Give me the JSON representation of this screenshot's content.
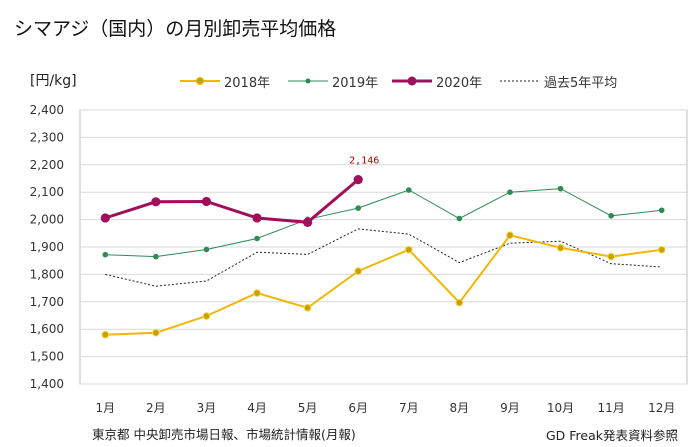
{
  "title": "シマアジ（国内）の月別卸売平均価格",
  "unit_label": "[円/kg]",
  "source": "東京都 中央卸売市場日報、市場統計情報(月報)",
  "credit": "GD Freak発表資料参照",
  "chart_data": {
    "type": "line",
    "categories": [
      "1月",
      "2月",
      "3月",
      "4月",
      "5月",
      "6月",
      "7月",
      "8月",
      "9月",
      "10月",
      "11月",
      "12月"
    ],
    "ylim": [
      1400,
      2400
    ],
    "y_ticks": [
      "1,400",
      "1,500",
      "1,600",
      "1,700",
      "1,800",
      "1,900",
      "2,000",
      "2,100",
      "2,200",
      "2,300",
      "2,400"
    ],
    "grid": true,
    "legend_position": "top",
    "series": [
      {
        "name": "2018年",
        "color": "#f2b705",
        "style": "solid-marker",
        "values": [
          1580,
          1587,
          1648,
          1732,
          1678,
          1812,
          1890,
          1697,
          1943,
          1897,
          1865,
          1890
        ]
      },
      {
        "name": "2019年",
        "color": "#2e8b57",
        "style": "solid-marker-small",
        "values": [
          1872,
          1865,
          1891,
          1931,
          2001,
          2042,
          2108,
          2004,
          2100,
          2113,
          2014,
          2034
        ]
      },
      {
        "name": "2020年",
        "color": "#a0105a",
        "style": "bold-marker",
        "values": [
          2006,
          2065,
          2066,
          2006,
          1990,
          2146,
          null,
          null,
          null,
          null,
          null,
          null
        ]
      },
      {
        "name": "過去5年平均",
        "color": "#222222",
        "style": "dotted",
        "values": [
          1800,
          1757,
          1776,
          1881,
          1873,
          1966,
          1947,
          1843,
          1914,
          1921,
          1839,
          1827
        ]
      }
    ],
    "annotations": [
      {
        "series": "2020年",
        "index": 5,
        "text": "2,146"
      }
    ]
  }
}
